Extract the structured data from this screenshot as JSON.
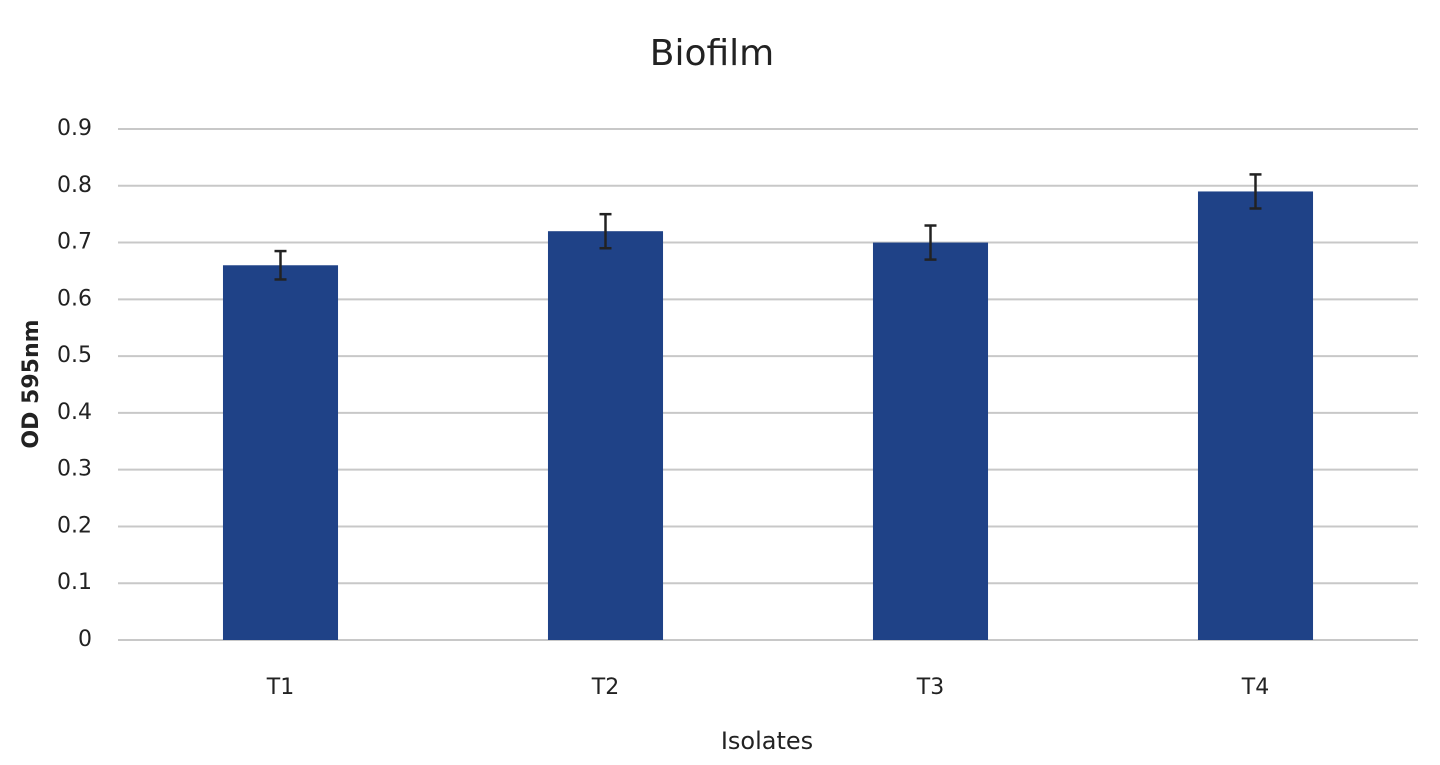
{
  "chart_data": {
    "type": "bar",
    "title": "Biofilm",
    "x_label": "Isolates",
    "y_label": "OD 595nm",
    "categories": [
      "T1",
      "T2",
      "T3",
      "T4"
    ],
    "values": [
      0.66,
      0.72,
      0.7,
      0.79
    ],
    "errors": [
      0.025,
      0.03,
      0.03,
      0.03
    ],
    "color": "#1f4287",
    "ylim": [
      0,
      0.9
    ],
    "yticks": [
      0,
      0.1,
      0.2,
      0.3,
      0.4,
      0.5,
      0.6,
      0.7,
      0.8,
      0.9
    ],
    "grid": true
  }
}
